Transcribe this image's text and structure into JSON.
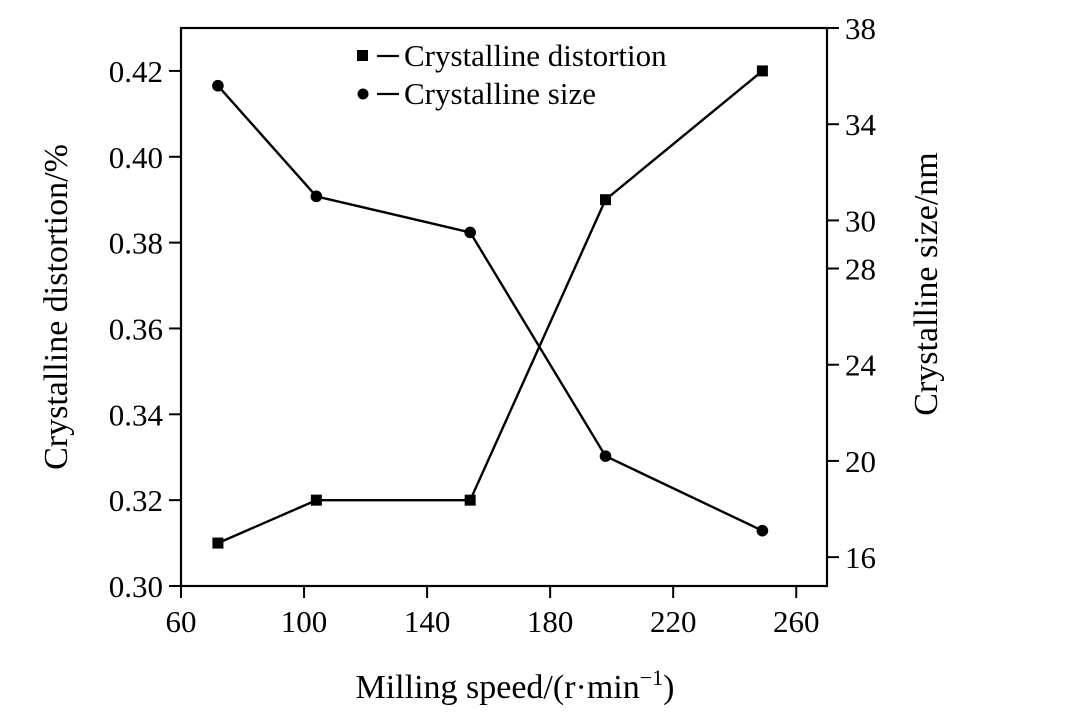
{
  "chart_data": {
    "type": "line",
    "title": "",
    "xlabel": "Milling speed/(r·min",
    "xlabel_sup": "−1",
    "xlabel_close": ")",
    "ylabel_left": "Crystalline distortion/%",
    "ylabel_right": "Crystalline size/nm",
    "xlim": [
      60,
      270
    ],
    "x_ticks": [
      "60",
      "100",
      "140",
      "180",
      "220",
      "260"
    ],
    "ylim_left": [
      0.3,
      0.43
    ],
    "y_ticks_left": [
      "0.30",
      "0.32",
      "0.34",
      "0.36",
      "0.38",
      "0.40",
      "0.42"
    ],
    "ylim_right": [
      14.8,
      38
    ],
    "y_ticks_right": [
      "16",
      "20",
      "24",
      "28",
      "30",
      "34",
      "38"
    ],
    "grid": false,
    "legend_position": "top-center",
    "series": [
      {
        "name": "Crystalline distortion",
        "axis": "left",
        "marker": "square",
        "color": "#000000",
        "x": [
          72,
          104,
          154,
          198,
          249
        ],
        "y": [
          0.31,
          0.32,
          0.32,
          0.39,
          0.42
        ]
      },
      {
        "name": "Crystalline size",
        "axis": "right",
        "marker": "circle",
        "color": "#000000",
        "x": [
          72,
          104,
          154,
          198,
          249
        ],
        "y": [
          35.6,
          31.0,
          29.5,
          20.2,
          17.1
        ]
      }
    ]
  }
}
